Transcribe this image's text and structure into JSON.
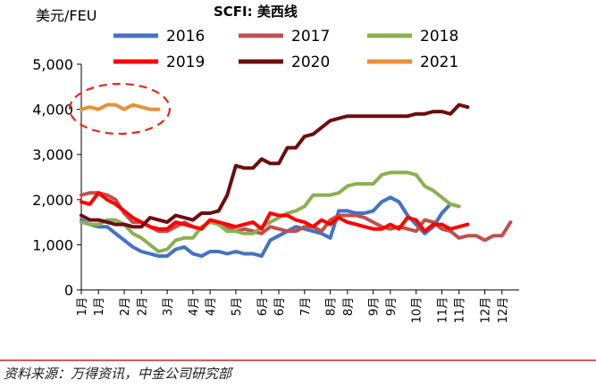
{
  "chart_data": {
    "type": "line",
    "title": "SCFI: 美西线",
    "ylabel": "美元/FEU",
    "xlabel": "",
    "ylim": [
      0,
      5000
    ],
    "y_ticks": [
      "0",
      "1,000",
      "2,000",
      "3,000",
      "4,000",
      "5,000"
    ],
    "y_tick_values": [
      0,
      1000,
      2000,
      3000,
      4000,
      5000
    ],
    "x_ticks": [
      "1月",
      "1月",
      "2月",
      "2月",
      "3月",
      "4月",
      "4月",
      "5月",
      "6月",
      "6月",
      "7月",
      "8月",
      "8月",
      "9月",
      "9月",
      "10月",
      "11月",
      "11月",
      "12月",
      "12月"
    ],
    "x_tick_weeks": [
      1,
      3,
      6,
      8,
      11,
      14,
      16,
      19,
      22,
      24,
      27,
      30,
      32,
      35,
      37,
      40,
      43,
      45,
      48,
      50
    ],
    "weeks": 52,
    "legend_placement": "top",
    "annotation": "dashed-ellipse-around-2021",
    "series": [
      {
        "name": "2016",
        "color": "#4472C4",
        "values": [
          1550,
          1450,
          1400,
          1400,
          1250,
          1100,
          950,
          850,
          800,
          750,
          750,
          900,
          950,
          800,
          750,
          850,
          850,
          800,
          850,
          800,
          800,
          750,
          1100,
          1200,
          1300,
          1400,
          1350,
          1300,
          1250,
          1150,
          1750,
          1750,
          1700,
          1700,
          1750,
          1950,
          2050,
          1950,
          1650,
          1450,
          1250,
          1400,
          1700,
          1900
        ]
      },
      {
        "name": "2017",
        "color": "#C0504D",
        "values": [
          2100,
          2150,
          2150,
          2100,
          2000,
          1700,
          1500,
          1500,
          1400,
          1300,
          1300,
          1400,
          1500,
          1400,
          1350,
          1550,
          1500,
          1400,
          1300,
          1350,
          1300,
          1250,
          1400,
          1350,
          1300,
          1300,
          1400,
          1400,
          1300,
          1550,
          1650,
          1650,
          1650,
          1600,
          1500,
          1400,
          1350,
          1400,
          1350,
          1300,
          1550,
          1500,
          1350,
          1300,
          1150,
          1200,
          1200,
          1100,
          1200,
          1200,
          1500
        ]
      },
      {
        "name": "2018",
        "color": "#8CB04F",
        "values": [
          1500,
          1450,
          1450,
          1550,
          1550,
          1450,
          1250,
          1150,
          1000,
          850,
          900,
          1100,
          1150,
          1150,
          1400,
          1500,
          1450,
          1300,
          1300,
          1250,
          1250,
          1400,
          1500,
          1600,
          1700,
          1750,
          1850,
          2100,
          2100,
          2100,
          2150,
          2300,
          2350,
          2350,
          2350,
          2550,
          2600,
          2600,
          2600,
          2550,
          2300,
          2200,
          2050,
          1900,
          1850
        ]
      },
      {
        "name": "2019",
        "color": "#FF0000",
        "values": [
          1950,
          1900,
          2150,
          2000,
          1900,
          1750,
          1600,
          1500,
          1400,
          1350,
          1350,
          1500,
          1450,
          1400,
          1350,
          1550,
          1500,
          1450,
          1400,
          1450,
          1500,
          1350,
          1700,
          1650,
          1650,
          1550,
          1500,
          1400,
          1550,
          1450,
          1600,
          1500,
          1450,
          1400,
          1350,
          1350,
          1450,
          1350,
          1600,
          1550,
          1300,
          1450,
          1450,
          1350,
          1400,
          1450
        ]
      },
      {
        "name": "2020",
        "color": "#6B0E0E",
        "values": [
          1650,
          1550,
          1550,
          1500,
          1450,
          1450,
          1400,
          1400,
          1600,
          1550,
          1500,
          1650,
          1600,
          1550,
          1700,
          1700,
          1750,
          2100,
          2750,
          2700,
          2700,
          2900,
          2800,
          2800,
          3150,
          3150,
          3400,
          3450,
          3600,
          3750,
          3800,
          3850,
          3850,
          3850,
          3850,
          3850,
          3850,
          3850,
          3850,
          3900,
          3900,
          3950,
          3950,
          3900,
          4100,
          4050
        ]
      },
      {
        "name": "2021",
        "color": "#E69138",
        "values": [
          4000,
          4050,
          4000,
          4100,
          4100,
          4000,
          4100,
          4050,
          4000,
          4000
        ]
      }
    ]
  },
  "source": "资料来源：万得资讯，中金公司研究部"
}
